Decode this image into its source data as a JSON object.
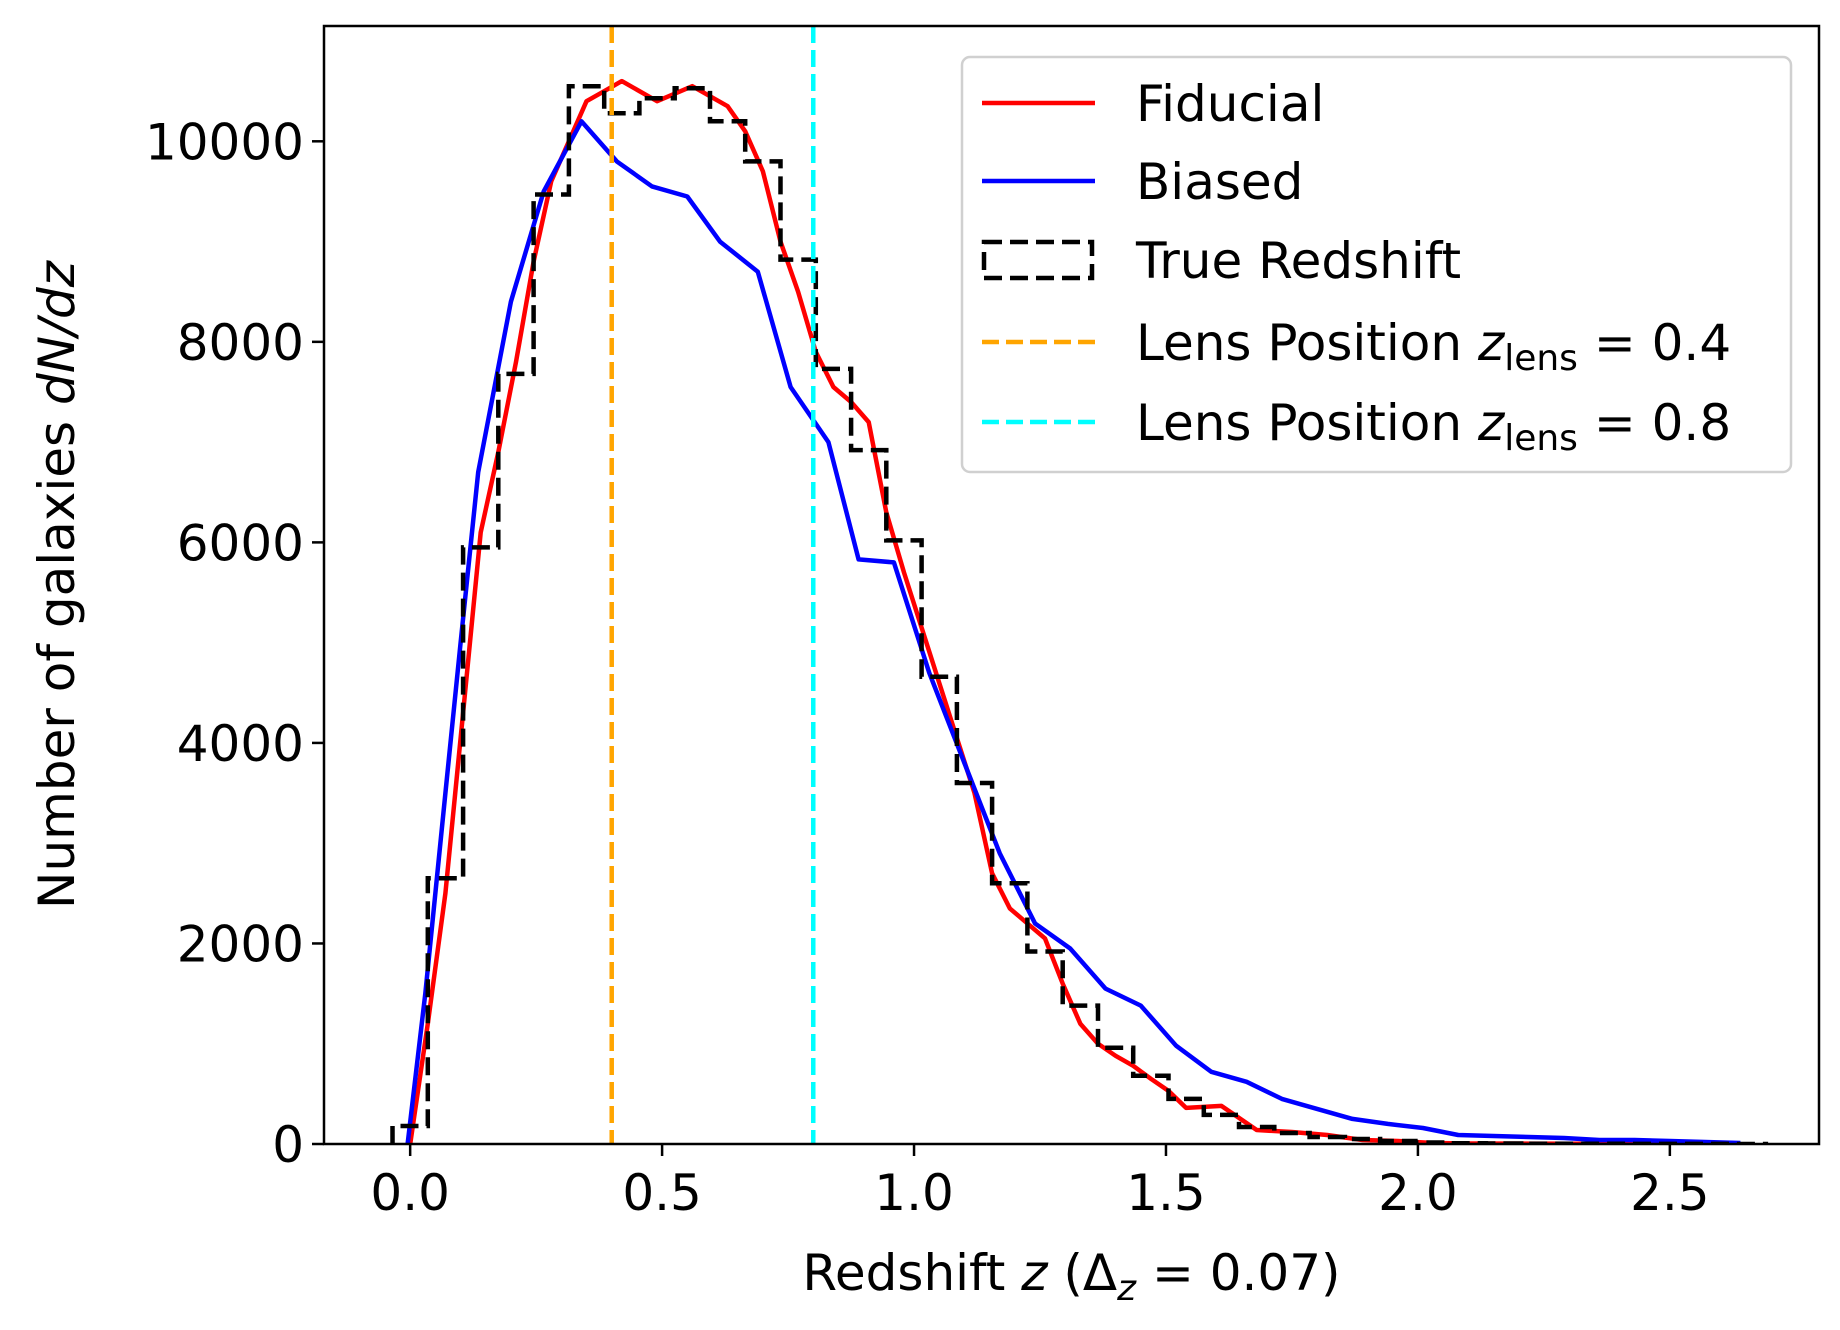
{
  "chart_data": {
    "type": "line",
    "xlabel_parts": [
      {
        "t": "Redshift ",
        "s": "n"
      },
      {
        "t": "z",
        "s": "i"
      },
      {
        "t": " (Δ",
        "s": "n"
      },
      {
        "t": "z",
        "s": "isub"
      },
      {
        "t": " = 0.07)",
        "s": "n"
      }
    ],
    "ylabel_parts": [
      {
        "t": "Number of galaxies ",
        "s": "n"
      },
      {
        "t": "dN/dz",
        "s": "i"
      }
    ],
    "xlim": [
      -0.171,
      2.796
    ],
    "ylim": [
      0,
      11150
    ],
    "xticks": [
      0.0,
      0.5,
      1.0,
      1.5,
      2.0,
      2.5
    ],
    "xtick_labels": [
      "0.0",
      "0.5",
      "1.0",
      "1.5",
      "2.0",
      "2.5"
    ],
    "yticks": [
      0,
      2000,
      4000,
      6000,
      8000,
      10000
    ],
    "ytick_labels": [
      "0",
      "2000",
      "4000",
      "6000",
      "8000",
      "10000"
    ],
    "grid": false,
    "legend_placement": "upper right",
    "series": [
      {
        "name": "Fiducial",
        "kind": "line",
        "color": "#ff0000",
        "x": [
          0.0,
          0.035,
          0.07,
          0.105,
          0.14,
          0.175,
          0.21,
          0.245,
          0.28,
          0.315,
          0.35,
          0.385,
          0.42,
          0.49,
          0.56,
          0.63,
          0.665,
          0.7,
          0.735,
          0.77,
          0.805,
          0.84,
          0.875,
          0.91,
          0.945,
          0.98,
          1.05,
          1.12,
          1.155,
          1.19,
          1.225,
          1.26,
          1.295,
          1.33,
          1.365,
          1.4,
          1.435,
          1.47,
          1.505,
          1.54,
          1.61,
          1.68,
          1.75,
          1.82,
          1.89,
          1.96,
          2.03,
          2.1,
          2.6
        ],
        "y": [
          0,
          1200,
          2500,
          4300,
          6100,
          6900,
          7800,
          8800,
          9600,
          10000,
          10400,
          10500,
          10600,
          10400,
          10550,
          10350,
          10100,
          9700,
          9000,
          8500,
          7900,
          7550,
          7400,
          7200,
          6300,
          5700,
          4600,
          3500,
          2700,
          2350,
          2200,
          2050,
          1600,
          1200,
          1000,
          880,
          780,
          650,
          530,
          360,
          380,
          140,
          120,
          90,
          40,
          30,
          10,
          5,
          0
        ]
      },
      {
        "name": "Biased",
        "kind": "line",
        "color": "#0000ff",
        "x": [
          -0.005,
          0.03,
          0.07,
          0.1,
          0.135,
          0.2,
          0.265,
          0.34,
          0.41,
          0.48,
          0.55,
          0.615,
          0.69,
          0.755,
          0.83,
          0.89,
          0.96,
          1.03,
          1.1,
          1.17,
          1.24,
          1.31,
          1.38,
          1.45,
          1.52,
          1.59,
          1.66,
          1.73,
          1.8,
          1.87,
          1.94,
          2.01,
          2.08,
          2.15,
          2.22,
          2.29,
          2.36,
          2.43,
          2.5,
          2.57,
          2.64
        ],
        "y": [
          0,
          1500,
          3500,
          5000,
          6700,
          8400,
          9500,
          10200,
          9800,
          9550,
          9450,
          9000,
          8700,
          7550,
          7000,
          5830,
          5800,
          4700,
          3800,
          2900,
          2200,
          1950,
          1550,
          1380,
          980,
          720,
          620,
          450,
          350,
          250,
          200,
          160,
          90,
          80,
          70,
          60,
          40,
          40,
          30,
          20,
          10
        ]
      },
      {
        "name": "True Redshift",
        "kind": "step",
        "color": "#000000",
        "bin_start": -0.035,
        "bin_width": 0.07,
        "counts": [
          180,
          2650,
          5950,
          7680,
          9470,
          10550,
          10280,
          10430,
          10530,
          10200,
          9800,
          8820,
          7730,
          6920,
          6020,
          4660,
          3600,
          2600,
          1920,
          1380,
          960,
          680,
          450,
          290,
          170,
          110,
          70,
          50,
          30,
          15,
          8,
          5,
          3,
          2,
          2,
          1,
          1,
          1,
          0
        ]
      },
      {
        "name": "Lens Position z_lens = 0.4",
        "kind": "vline",
        "color": "#ffa500",
        "x": 0.4
      },
      {
        "name": "Lens Position z_lens = 0.8",
        "kind": "vline",
        "color": "#00ffff",
        "x": 0.8
      }
    ],
    "legend": [
      {
        "parts": [
          {
            "t": "Fiducial",
            "s": "n"
          }
        ],
        "color": "#ff0000",
        "marker": "solid"
      },
      {
        "parts": [
          {
            "t": "Biased",
            "s": "n"
          }
        ],
        "color": "#0000ff",
        "marker": "solid"
      },
      {
        "parts": [
          {
            "t": "True Redshift",
            "s": "n"
          }
        ],
        "color": "#000000",
        "marker": "box"
      },
      {
        "parts": [
          {
            "t": "Lens Position ",
            "s": "n"
          },
          {
            "t": "z",
            "s": "i"
          },
          {
            "t": "lens",
            "s": "sub"
          },
          {
            "t": " = 0.4",
            "s": "n"
          }
        ],
        "color": "#ffa500",
        "marker": "dash"
      },
      {
        "parts": [
          {
            "t": "Lens Position ",
            "s": "n"
          },
          {
            "t": "z",
            "s": "i"
          },
          {
            "t": "lens",
            "s": "sub"
          },
          {
            "t": " = 0.8",
            "s": "n"
          }
        ],
        "color": "#00ffff",
        "marker": "dash"
      }
    ]
  }
}
